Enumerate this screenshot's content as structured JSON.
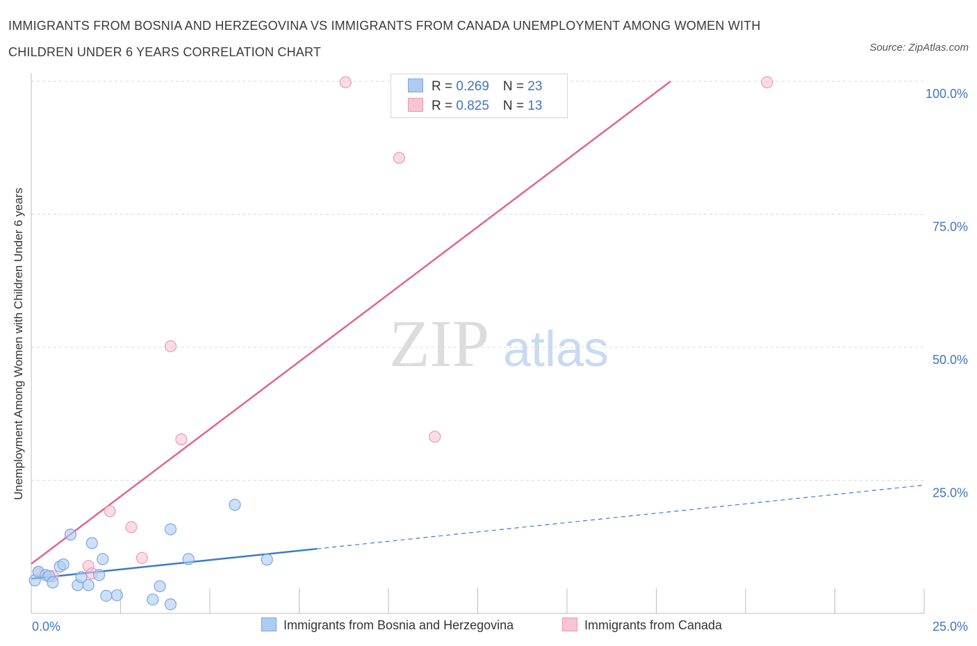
{
  "header": {
    "title": "IMMIGRANTS FROM BOSNIA AND HERZEGOVINA VS IMMIGRANTS FROM CANADA UNEMPLOYMENT AMONG WOMEN WITH CHILDREN UNDER 6 YEARS CORRELATION CHART",
    "source": "Source: ZipAtlas.com"
  },
  "watermark": {
    "zip": "ZIP",
    "atlas": "atlas"
  },
  "legend": {
    "rows": [
      {
        "r_label": "R = ",
        "r_value": "0.269",
        "n_label": "N = ",
        "n_value": "23"
      },
      {
        "r_label": "R = ",
        "r_value": "0.825",
        "n_label": "N = ",
        "n_value": "13"
      }
    ]
  },
  "colors": {
    "blue_fill": "#aecbf2",
    "blue_stroke": "#7aa6e0",
    "blue_line": "#3a78d0",
    "pink_fill": "#f6c4d3",
    "pink_stroke": "#ec9ab4",
    "pink_line": "#e06490",
    "tick_label": "#3f74c7",
    "grid": "#d9d9d9"
  },
  "chart_data": {
    "type": "scatter",
    "title": "IMMIGRANTS FROM BOSNIA AND HERZEGOVINA VS IMMIGRANTS FROM CANADA UNEMPLOYMENT AMONG WOMEN WITH CHILDREN UNDER 6 YEARS CORRELATION CHART",
    "xlabel": "",
    "ylabel": "Unemployment Among Women with Children Under 6 years",
    "xlim": [
      0,
      25
    ],
    "ylim": [
      0,
      100
    ],
    "x_tick_labels": [
      "0.0%",
      "25.0%"
    ],
    "y_ticks": [
      25,
      50,
      75,
      100
    ],
    "y_tick_labels": [
      "25.0%",
      "50.0%",
      "75.0%",
      "100.0%"
    ],
    "grid": true,
    "legend_position": "top-center",
    "series": [
      {
        "name": "Immigrants from Bosnia and Herzegovina",
        "color": "blue",
        "points": [
          [
            0.1,
            6.2
          ],
          [
            0.2,
            7.8
          ],
          [
            0.4,
            7.2
          ],
          [
            0.5,
            7.0
          ],
          [
            0.6,
            5.8
          ],
          [
            0.8,
            8.8
          ],
          [
            0.9,
            9.2
          ],
          [
            1.1,
            14.8
          ],
          [
            1.3,
            5.3
          ],
          [
            1.4,
            6.8
          ],
          [
            1.6,
            5.3
          ],
          [
            1.7,
            13.2
          ],
          [
            1.9,
            7.2
          ],
          [
            2.0,
            10.2
          ],
          [
            2.1,
            3.3
          ],
          [
            2.4,
            3.4
          ],
          [
            3.4,
            2.6
          ],
          [
            3.6,
            5.1
          ],
          [
            3.9,
            1.7
          ],
          [
            3.9,
            15.8
          ],
          [
            4.4,
            10.2
          ],
          [
            5.7,
            20.4
          ],
          [
            6.6,
            10.1
          ]
        ],
        "trend": {
          "x": [
            0,
            25
          ],
          "y": [
            6.5,
            24.1
          ],
          "solid_until_x": 8
        }
      },
      {
        "name": "Immigrants from Canada",
        "color": "pink",
        "points": [
          [
            0.2,
            7.8
          ],
          [
            0.6,
            7.0
          ],
          [
            1.6,
            8.9
          ],
          [
            2.2,
            19.2
          ],
          [
            2.8,
            16.2
          ],
          [
            3.1,
            10.4
          ],
          [
            3.9,
            50.2
          ],
          [
            4.2,
            32.7
          ],
          [
            8.8,
            99.8
          ],
          [
            10.3,
            85.6
          ],
          [
            11.3,
            33.2
          ],
          [
            20.6,
            99.8
          ],
          [
            1.7,
            7.5
          ]
        ],
        "trend": {
          "x": [
            0,
            17.9
          ],
          "y": [
            9.3,
            100
          ]
        }
      }
    ]
  },
  "bottom_legend": {
    "items": [
      {
        "label": "Immigrants from Bosnia and Herzegovina"
      },
      {
        "label": "Immigrants from Canada"
      }
    ]
  }
}
